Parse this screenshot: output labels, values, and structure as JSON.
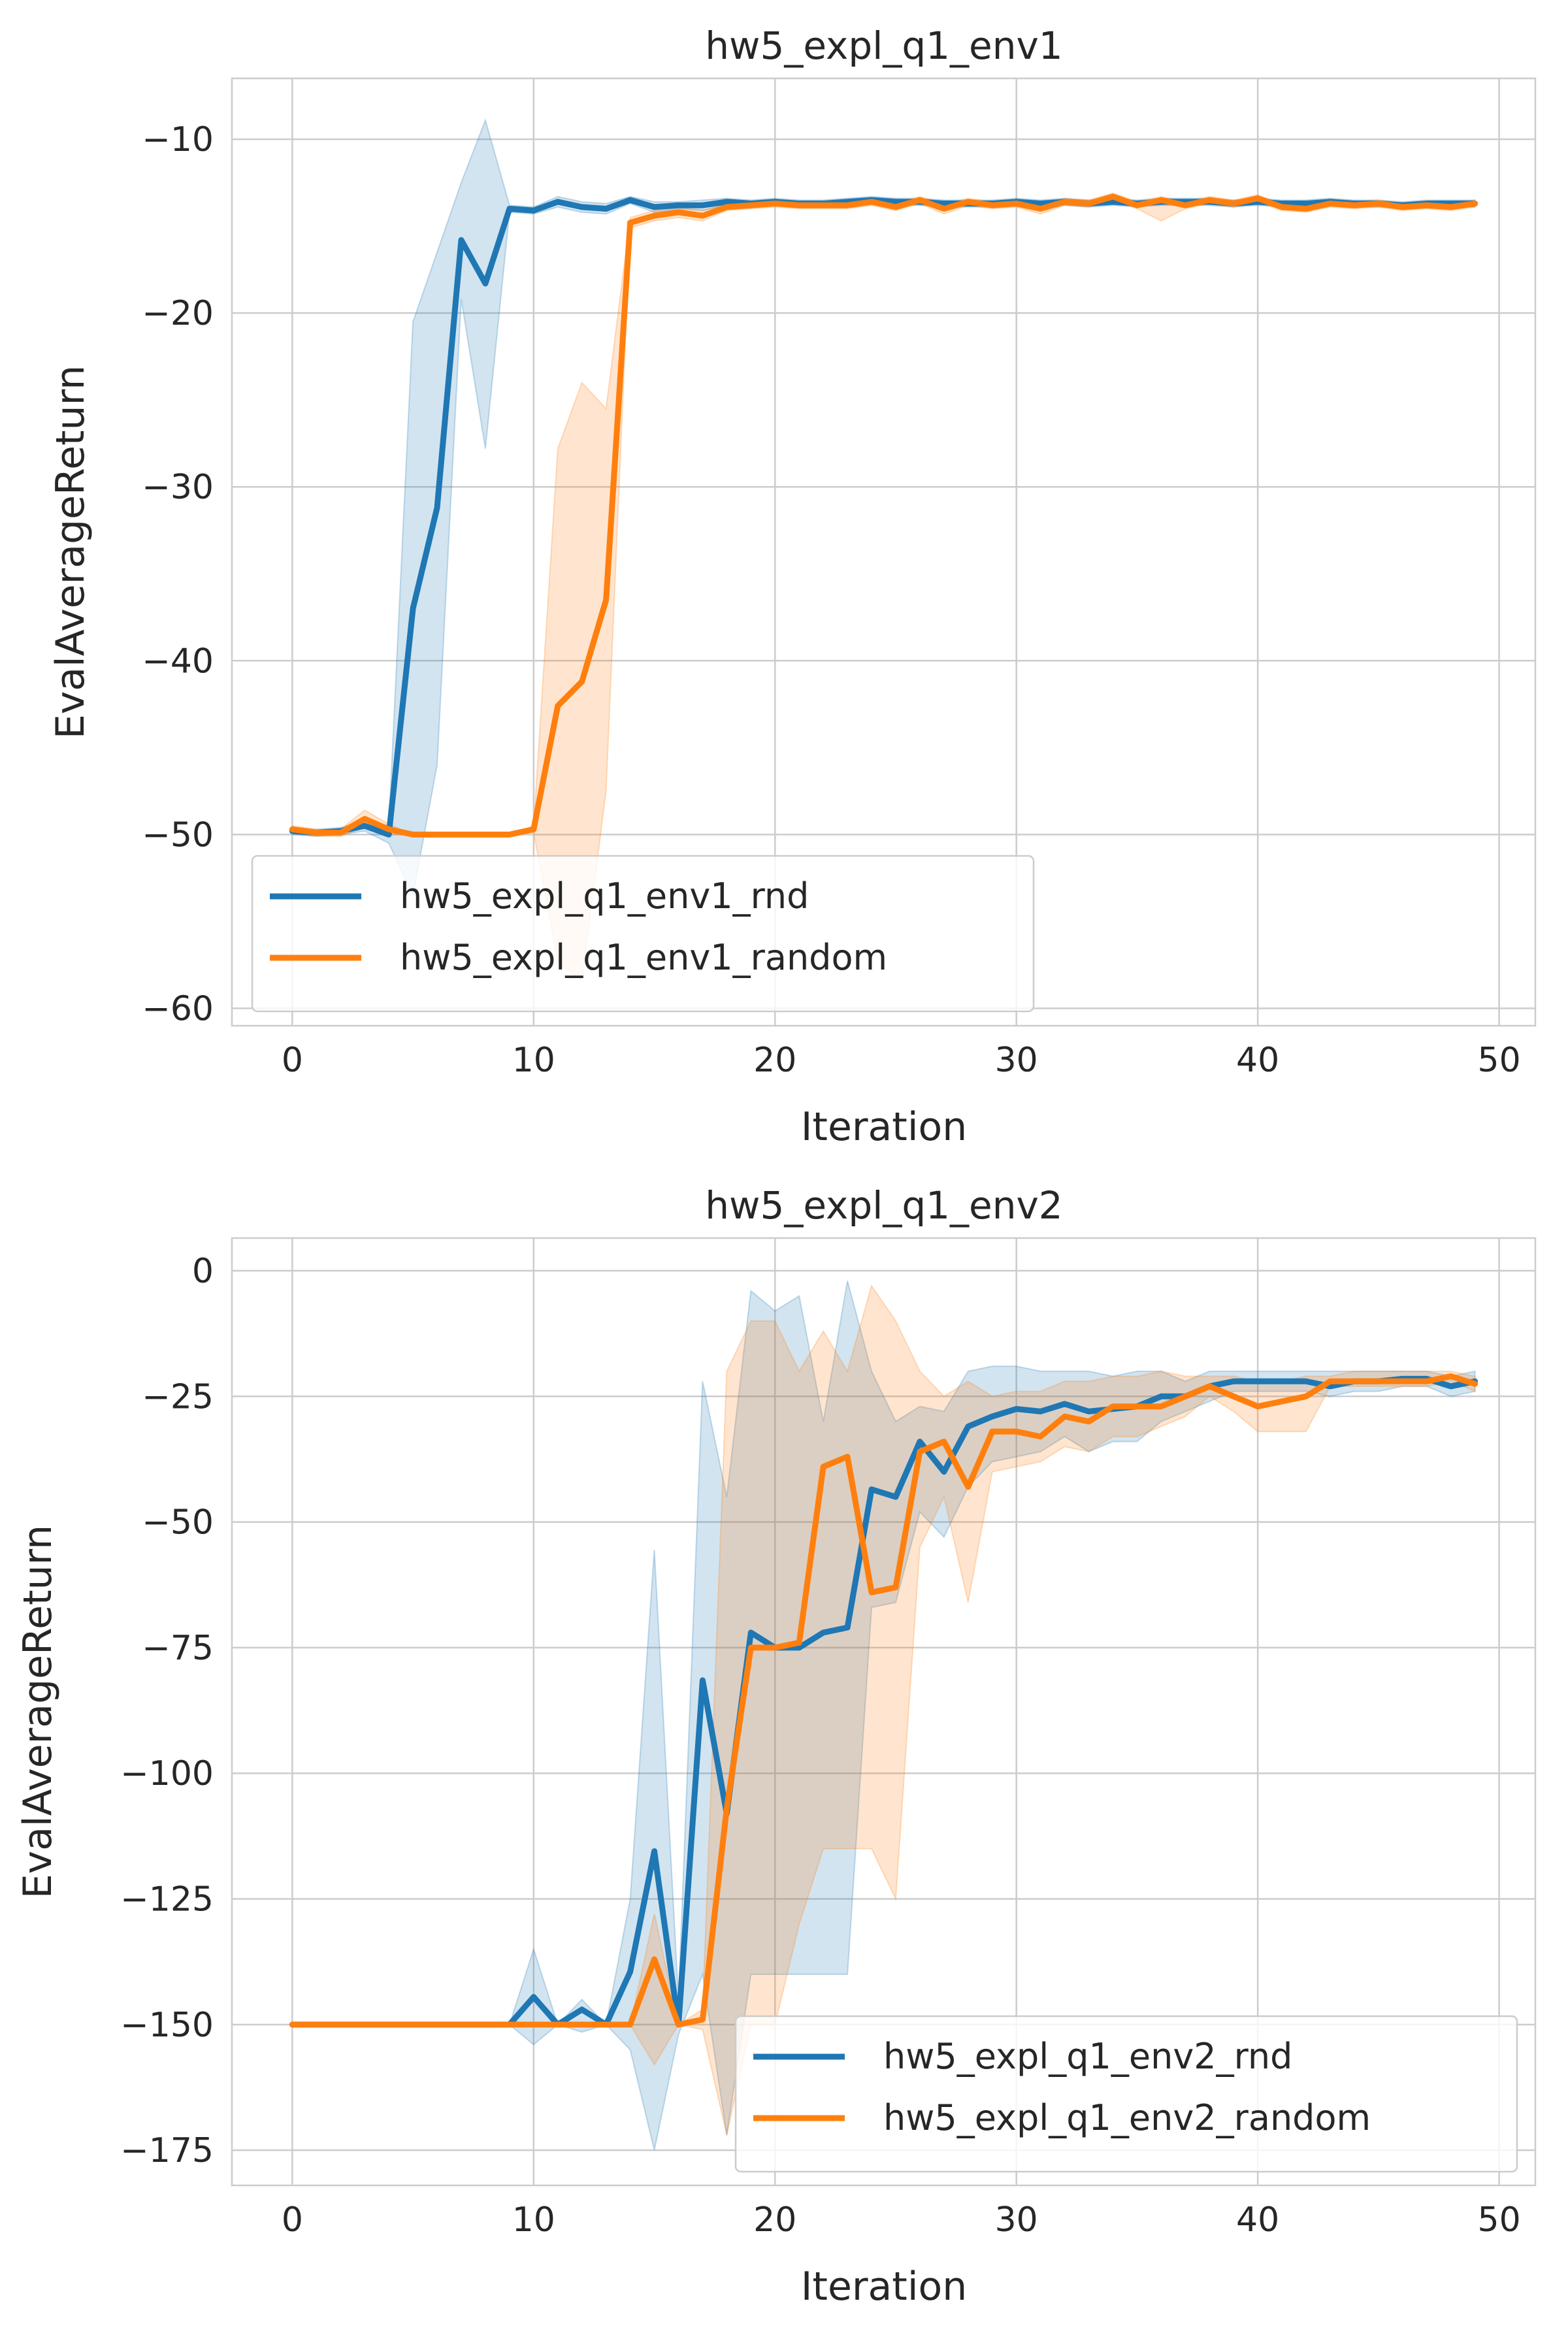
{
  "chart_data": [
    {
      "type": "line",
      "title": "hw5_expl_q1_env1",
      "xlabel": "Iteration",
      "ylabel": "EvalAverageReturn",
      "xlim": [
        -2.5,
        51.5
      ],
      "ylim": [
        -61,
        -6.5
      ],
      "xticks": [
        0,
        10,
        20,
        30,
        40,
        50
      ],
      "yticks": [
        -60,
        -50,
        -40,
        -30,
        -20,
        -10
      ],
      "grid": true,
      "legend_position": "lower-left",
      "x": [
        0,
        1,
        2,
        3,
        4,
        5,
        6,
        7,
        8,
        9,
        10,
        11,
        12,
        13,
        14,
        15,
        16,
        17,
        18,
        19,
        20,
        21,
        22,
        23,
        24,
        25,
        26,
        27,
        28,
        29,
        30,
        31,
        32,
        33,
        34,
        35,
        36,
        37,
        38,
        39,
        40,
        41,
        42,
        43,
        44,
        45,
        46,
        47,
        48,
        49
      ],
      "series": [
        {
          "name": "hw5_expl_q1_env1_rnd",
          "color": "#1f77b4",
          "values": [
            -49.8,
            -49.9,
            -49.8,
            -49.5,
            -50,
            -37,
            -31.2,
            -15.8,
            -18.3,
            -14,
            -14.1,
            -13.6,
            -13.9,
            -14,
            -13.5,
            -13.9,
            -13.8,
            -13.8,
            -13.6,
            -13.7,
            -13.6,
            -13.7,
            -13.7,
            -13.6,
            -13.5,
            -13.6,
            -13.6,
            -13.7,
            -13.7,
            -13.7,
            -13.6,
            -13.7,
            -13.6,
            -13.7,
            -13.6,
            -13.7,
            -13.6,
            -13.6,
            -13.6,
            -13.7,
            -13.6,
            -13.7,
            -13.7,
            -13.6,
            -13.7,
            -13.7,
            -13.8,
            -13.7,
            -13.7,
            -13.7
          ],
          "band_upper": [
            -49.6,
            -49.7,
            -49.6,
            -49.2,
            -49.5,
            -20.5,
            -16.5,
            -12.5,
            -8.9,
            -13.8,
            -13.9,
            -13.3,
            -13.6,
            -13.7,
            -13.3,
            -13.6,
            -13.6,
            -13.5,
            -13.4,
            -13.5,
            -13.4,
            -13.5,
            -13.5,
            -13.4,
            -13.3,
            -13.4,
            -13.4,
            -13.5,
            -13.5,
            -13.5,
            -13.4,
            -13.5,
            -13.4,
            -13.5,
            -13.4,
            -13.5,
            -13.4,
            -13.4,
            -13.4,
            -13.5,
            -13.4,
            -13.5,
            -13.5,
            -13.4,
            -13.5,
            -13.5,
            -13.6,
            -13.5,
            -13.5,
            -13.5
          ],
          "band_lower": [
            -50,
            -50.1,
            -50,
            -49.8,
            -50.5,
            -53.5,
            -46,
            -19.2,
            -27.8,
            -14.2,
            -14.3,
            -13.9,
            -14.2,
            -14.3,
            -13.7,
            -14.2,
            -14,
            -14.1,
            -13.8,
            -13.9,
            -13.8,
            -13.9,
            -13.9,
            -13.8,
            -13.7,
            -13.8,
            -13.8,
            -13.9,
            -13.9,
            -13.9,
            -13.8,
            -13.9,
            -13.8,
            -13.9,
            -13.8,
            -13.9,
            -13.8,
            -13.8,
            -13.8,
            -13.9,
            -13.8,
            -13.9,
            -13.9,
            -13.8,
            -13.9,
            -13.9,
            -14,
            -13.9,
            -13.9,
            -13.9
          ]
        },
        {
          "name": "hw5_expl_q1_env1_random",
          "color": "#ff7f0e",
          "values": [
            -49.7,
            -49.9,
            -49.9,
            -49.1,
            -49.7,
            -50,
            -50,
            -50,
            -50,
            -50,
            -49.7,
            -42.6,
            -41.2,
            -36.5,
            -14.8,
            -14.4,
            -14.2,
            -14.4,
            -13.9,
            -13.8,
            -13.7,
            -13.8,
            -13.8,
            -13.8,
            -13.6,
            -13.9,
            -13.5,
            -14,
            -13.6,
            -13.8,
            -13.7,
            -14,
            -13.6,
            -13.7,
            -13.3,
            -13.8,
            -13.5,
            -13.8,
            -13.5,
            -13.7,
            -13.4,
            -13.9,
            -14,
            -13.7,
            -13.8,
            -13.7,
            -13.9,
            -13.8,
            -13.9,
            -13.7
          ],
          "band_upper": [
            -49.5,
            -49.7,
            -49.7,
            -48.6,
            -49.4,
            -50,
            -50,
            -50,
            -50,
            -50,
            -49.5,
            -27.8,
            -24,
            -25.5,
            -14.5,
            -14.1,
            -13.9,
            -14.1,
            -13.7,
            -13.6,
            -13.5,
            -13.6,
            -13.6,
            -13.6,
            -13.4,
            -13.7,
            -13.3,
            -13.7,
            -13.4,
            -13.6,
            -13.5,
            -13.7,
            -13.4,
            -13.5,
            -13.1,
            -13.6,
            -13.3,
            -13.6,
            -13.3,
            -13.5,
            -13.2,
            -13.7,
            -13.8,
            -13.5,
            -13.6,
            -13.5,
            -13.7,
            -13.6,
            -13.7,
            -13.5
          ],
          "band_lower": [
            -49.9,
            -50.1,
            -50.1,
            -49.6,
            -50,
            -50,
            -50,
            -50,
            -50,
            -50,
            -49.9,
            -57.3,
            -58.4,
            -47.5,
            -15.1,
            -14.7,
            -14.5,
            -14.7,
            -14.1,
            -14,
            -13.9,
            -14,
            -14,
            -14,
            -13.8,
            -14.1,
            -13.7,
            -14.3,
            -13.8,
            -14,
            -13.9,
            -14.3,
            -13.8,
            -13.9,
            -13.5,
            -14,
            -14.7,
            -14,
            -13.7,
            -13.9,
            -13.6,
            -14.1,
            -14.2,
            -13.9,
            -14,
            -13.9,
            -14.1,
            -14,
            -14.1,
            -13.9
          ]
        }
      ]
    },
    {
      "type": "line",
      "title": "hw5_expl_q1_env2",
      "xlabel": "Iteration",
      "ylabel": "EvalAverageReturn",
      "xlim": [
        -2.5,
        51.5
      ],
      "ylim": [
        -182,
        6.5
      ],
      "xticks": [
        0,
        10,
        20,
        30,
        40,
        50
      ],
      "yticks": [
        -175,
        -150,
        -125,
        -100,
        -75,
        -50,
        -25,
        0
      ],
      "grid": true,
      "legend_position": "lower-right",
      "x": [
        0,
        1,
        2,
        3,
        4,
        5,
        6,
        7,
        8,
        9,
        10,
        11,
        12,
        13,
        14,
        15,
        16,
        17,
        18,
        19,
        20,
        21,
        22,
        23,
        24,
        25,
        26,
        27,
        28,
        29,
        30,
        31,
        32,
        33,
        34,
        35,
        36,
        37,
        38,
        39,
        40,
        41,
        42,
        43,
        44,
        45,
        46,
        47,
        48,
        49
      ],
      "series": [
        {
          "name": "hw5_expl_q1_env2_rnd",
          "color": "#1f77b4",
          "values": [
            -150,
            -150,
            -150,
            -150,
            -150,
            -150,
            -150,
            -150,
            -150,
            -150,
            -144.5,
            -150,
            -147,
            -150,
            -139.5,
            -115.5,
            -150,
            -81.5,
            -108,
            -72,
            -75,
            -75,
            -72,
            -71,
            -43.5,
            -45,
            -34,
            -40,
            -31,
            -29,
            -27.5,
            -28,
            -26.5,
            -28,
            -27.5,
            -27,
            -25,
            -25,
            -23,
            -22,
            -22,
            -22,
            -22,
            -23,
            -22,
            -22,
            -21.5,
            -21.5,
            -23,
            -22
          ],
          "band_upper": [
            -150,
            -150,
            -150,
            -150,
            -150,
            -150,
            -150,
            -150,
            -150,
            -150,
            -135,
            -150,
            -145,
            -150,
            -125,
            -55.5,
            -145,
            -22,
            -45,
            -4,
            -8,
            -5,
            -30,
            -2,
            -20,
            -30,
            -27,
            -28,
            -20,
            -19,
            -19,
            -20,
            -20,
            -20,
            -21,
            -20,
            -20,
            -22,
            -20,
            -20,
            -20,
            -20,
            -20,
            -20,
            -20,
            -20,
            -20,
            -20,
            -21,
            -20
          ],
          "band_lower": [
            -150,
            -150,
            -150,
            -150,
            -150,
            -150,
            -150,
            -150,
            -150,
            -150,
            -154,
            -150,
            -151.5,
            -150,
            -155,
            -175,
            -152,
            -140,
            -172,
            -140,
            -140,
            -140,
            -140,
            -140,
            -67,
            -66,
            -48,
            -53,
            -43,
            -38,
            -37,
            -36,
            -33,
            -36,
            -34,
            -34,
            -30,
            -28,
            -26,
            -24,
            -24,
            -24,
            -24,
            -25,
            -24,
            -24,
            -23,
            -23,
            -25,
            -24
          ]
        },
        {
          "name": "hw5_expl_q1_env2_random",
          "color": "#ff7f0e",
          "values": [
            -150,
            -150,
            -150,
            -150,
            -150,
            -150,
            -150,
            -150,
            -150,
            -150,
            -150,
            -150,
            -150,
            -150,
            -150,
            -137,
            -150,
            -149,
            -107,
            -75,
            -75,
            -74,
            -39,
            -37,
            -64,
            -63,
            -36,
            -34,
            -43,
            -32,
            -32,
            -33,
            -29,
            -30,
            -27,
            -27,
            -27,
            -25,
            -23,
            -25,
            -27,
            -26,
            -25,
            -22,
            -22,
            -22,
            -22,
            -22,
            -21,
            -22.5
          ],
          "band_upper": [
            -150,
            -150,
            -150,
            -150,
            -150,
            -150,
            -150,
            -150,
            -150,
            -150,
            -150,
            -150,
            -150,
            -150,
            -150,
            -128,
            -150,
            -147,
            -20,
            -10,
            -10,
            -20,
            -12,
            -20,
            -3,
            -10,
            -20,
            -25,
            -22,
            -25,
            -24,
            -24,
            -22,
            -22,
            -21,
            -21,
            -20,
            -21,
            -21,
            -21,
            -22,
            -22,
            -21,
            -21,
            -20,
            -20,
            -20,
            -20,
            -20,
            -21
          ],
          "band_lower": [
            -150,
            -150,
            -150,
            -150,
            -150,
            -150,
            -150,
            -150,
            -150,
            -150,
            -150,
            -150,
            -150,
            -150,
            -150,
            -158,
            -150,
            -151,
            -172,
            -150,
            -150,
            -130,
            -115,
            -115,
            -115,
            -125,
            -55,
            -45,
            -66,
            -40,
            -39,
            -38,
            -35,
            -36,
            -33,
            -33,
            -31,
            -29,
            -25,
            -28,
            -32,
            -32,
            -32,
            -23,
            -23,
            -23,
            -23,
            -23,
            -22,
            -24
          ]
        }
      ]
    }
  ]
}
